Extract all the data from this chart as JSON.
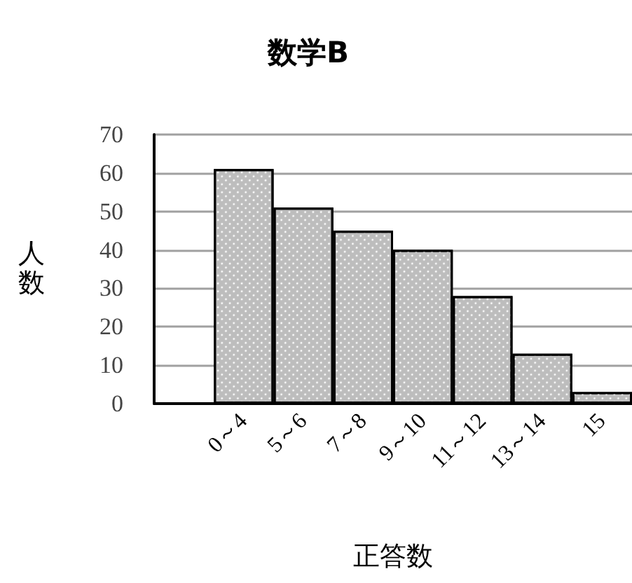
{
  "chart_data": {
    "type": "bar",
    "title": "数学B",
    "xlabel": "正答数",
    "ylabel": "人数",
    "categories": [
      null,
      "0～4",
      "5～6",
      "7～8",
      "9～10",
      "11～12",
      "13～14",
      "15"
    ],
    "values": [
      null,
      61,
      51,
      45,
      40,
      28,
      13,
      3
    ],
    "color": "#bdbdbd",
    "ylim": [
      0,
      70
    ],
    "yticks": [
      0,
      10,
      20,
      30,
      40,
      50,
      60,
      70
    ],
    "grid": "y"
  }
}
